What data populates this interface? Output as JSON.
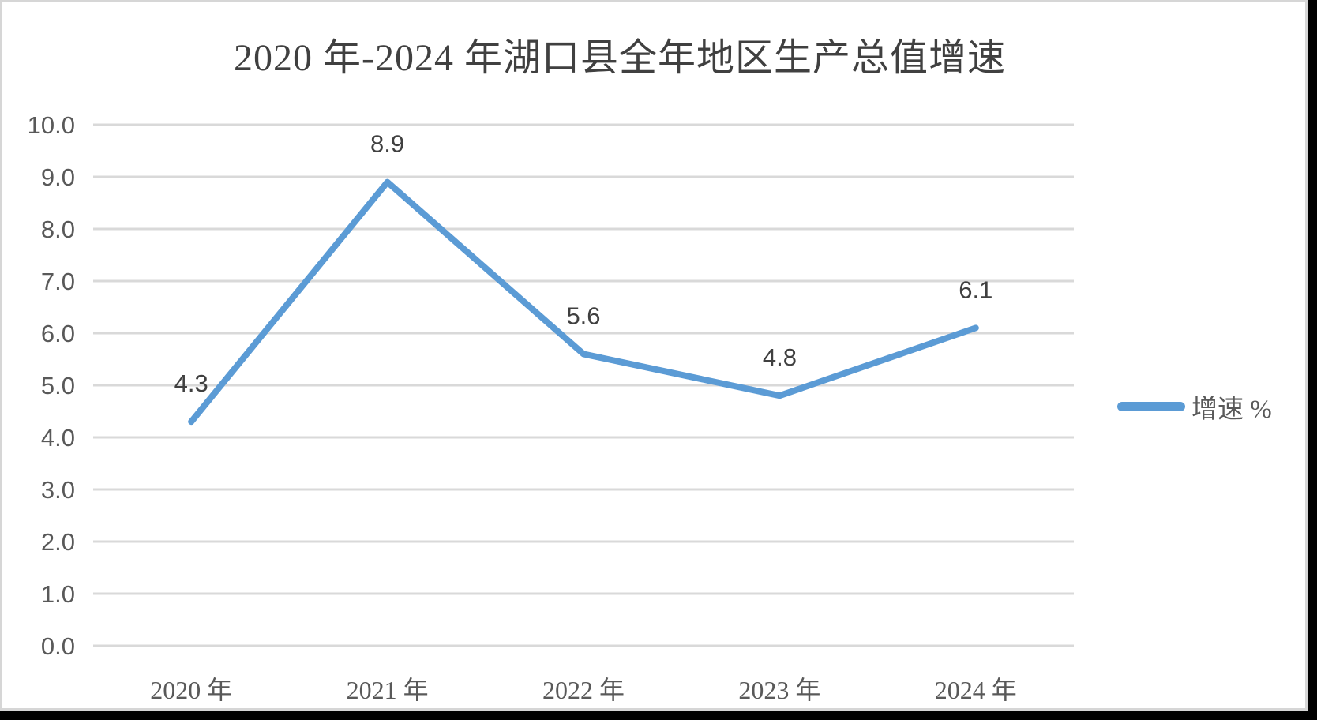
{
  "chart_data": {
    "type": "line",
    "title": "2020 年-2024 年湖口县全年地区生产总值增速",
    "categories": [
      "2020 年",
      "2021 年",
      "2022 年",
      "2023 年",
      "2024 年"
    ],
    "series": [
      {
        "name": "增速 %",
        "values": [
          4.3,
          8.9,
          5.6,
          4.8,
          6.1
        ]
      }
    ],
    "data_labels": [
      "4.3",
      "8.9",
      "5.6",
      "4.8",
      "6.1"
    ],
    "xlabel": "",
    "ylabel": "",
    "ylim": [
      0,
      10
    ],
    "ytick_step": 1.0,
    "ytick_labels": [
      "0.0",
      "1.0",
      "2.0",
      "3.0",
      "4.0",
      "5.0",
      "6.0",
      "7.0",
      "8.0",
      "9.0",
      "10.0"
    ],
    "grid": "horizontal-only",
    "legend_position": "right-middle",
    "colors": {
      "line": "#5b9bd5",
      "grid": "#d9d9d9",
      "axis_text": "#595959",
      "data_label_text": "#404040",
      "title_text": "#404040",
      "panel_background": "#ffffff",
      "canvas_background": "#000000"
    }
  }
}
